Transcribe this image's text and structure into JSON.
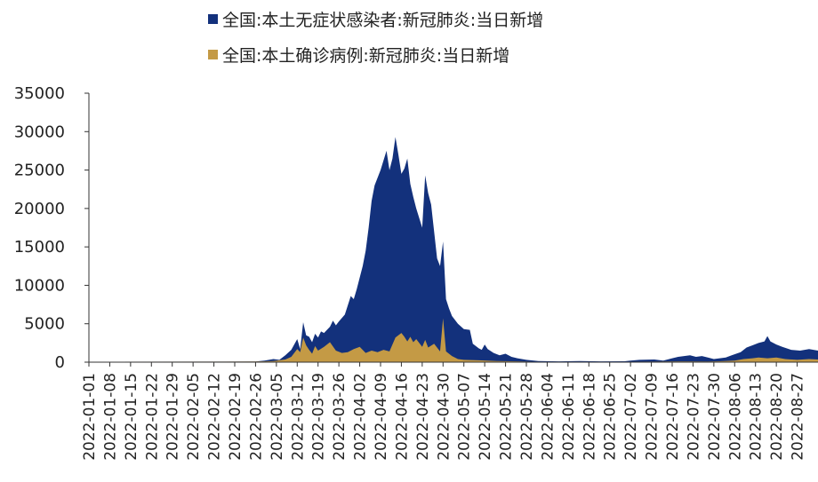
{
  "legend": [
    {
      "label": "全国:本土无症状感染者:新冠肺炎:当日新增",
      "color": "#13317c"
    },
    {
      "label": "全国:本土确诊病例:新冠肺炎:当日新增",
      "color": "#c49a45"
    }
  ],
  "chart_data": {
    "type": "area",
    "stacked": true,
    "ylim": [
      0,
      35000
    ],
    "yticks": [
      0,
      5000,
      10000,
      15000,
      20000,
      25000,
      30000,
      35000
    ],
    "xlim": [
      "2022-01-01",
      "2022-09-03"
    ],
    "xticks": [
      "2022-01-01",
      "2022-01-08",
      "2022-01-15",
      "2022-01-22",
      "2022-01-29",
      "2022-02-05",
      "2022-02-12",
      "2022-02-19",
      "2022-02-26",
      "2022-03-05",
      "2022-03-12",
      "2022-03-19",
      "2022-03-26",
      "2022-04-02",
      "2022-04-09",
      "2022-04-16",
      "2022-04-23",
      "2022-04-30",
      "2022-05-07",
      "2022-05-14",
      "2022-05-21",
      "2022-05-28",
      "2022-06-04",
      "2022-06-11",
      "2022-06-18",
      "2022-06-25",
      "2022-07-02",
      "2022-07-09",
      "2022-07-16",
      "2022-07-23",
      "2022-07-30",
      "2022-08-06",
      "2022-08-13",
      "2022-08-20",
      "2022-08-27"
    ],
    "series": [
      {
        "name": "全国:本土确诊病例:新冠肺炎:当日新增",
        "color": "#c49a45",
        "points": [
          [
            "2022-01-01",
            50
          ],
          [
            "2022-02-26",
            80
          ],
          [
            "2022-03-01",
            100
          ],
          [
            "2022-03-04",
            150
          ],
          [
            "2022-03-06",
            250
          ],
          [
            "2022-03-08",
            350
          ],
          [
            "2022-03-10",
            700
          ],
          [
            "2022-03-11",
            1200
          ],
          [
            "2022-03-12",
            1700
          ],
          [
            "2022-03-13",
            1300
          ],
          [
            "2022-03-14",
            3200
          ],
          [
            "2022-03-15",
            2200
          ],
          [
            "2022-03-16",
            1600
          ],
          [
            "2022-03-17",
            1100
          ],
          [
            "2022-03-18",
            2100
          ],
          [
            "2022-03-19",
            1500
          ],
          [
            "2022-03-21",
            2000
          ],
          [
            "2022-03-23",
            2600
          ],
          [
            "2022-03-25",
            1500
          ],
          [
            "2022-03-27",
            1200
          ],
          [
            "2022-03-29",
            1300
          ],
          [
            "2022-03-31",
            1700
          ],
          [
            "2022-04-02",
            2000
          ],
          [
            "2022-04-04",
            1200
          ],
          [
            "2022-04-06",
            1500
          ],
          [
            "2022-04-08",
            1300
          ],
          [
            "2022-04-10",
            1600
          ],
          [
            "2022-04-12",
            1400
          ],
          [
            "2022-04-14",
            3200
          ],
          [
            "2022-04-16",
            3800
          ],
          [
            "2022-04-17",
            3300
          ],
          [
            "2022-04-18",
            2700
          ],
          [
            "2022-04-19",
            3300
          ],
          [
            "2022-04-20",
            2600
          ],
          [
            "2022-04-21",
            3000
          ],
          [
            "2022-04-23",
            2000
          ],
          [
            "2022-04-24",
            2900
          ],
          [
            "2022-04-25",
            1900
          ],
          [
            "2022-04-27",
            2400
          ],
          [
            "2022-04-29",
            1400
          ],
          [
            "2022-04-30",
            5700
          ],
          [
            "2022-05-01",
            1400
          ],
          [
            "2022-05-03",
            800
          ],
          [
            "2022-05-05",
            400
          ],
          [
            "2022-05-07",
            300
          ],
          [
            "2022-05-12",
            250
          ],
          [
            "2022-05-18",
            150
          ],
          [
            "2022-05-25",
            100
          ],
          [
            "2022-06-01",
            50
          ],
          [
            "2022-06-18",
            40
          ],
          [
            "2022-07-01",
            60
          ],
          [
            "2022-07-10",
            70
          ],
          [
            "2022-07-20",
            100
          ],
          [
            "2022-07-28",
            80
          ],
          [
            "2022-08-01",
            120
          ],
          [
            "2022-08-06",
            200
          ],
          [
            "2022-08-09",
            400
          ],
          [
            "2022-08-12",
            500
          ],
          [
            "2022-08-14",
            600
          ],
          [
            "2022-08-17",
            500
          ],
          [
            "2022-08-20",
            600
          ],
          [
            "2022-08-23",
            400
          ],
          [
            "2022-08-27",
            300
          ],
          [
            "2022-08-31",
            400
          ],
          [
            "2022-09-03",
            350
          ]
        ]
      },
      {
        "name": "全国:本土无症状感染者:新冠肺炎:当日新增",
        "color": "#13317c",
        "points": [
          [
            "2022-01-01",
            50
          ],
          [
            "2022-02-26",
            80
          ],
          [
            "2022-03-01",
            200
          ],
          [
            "2022-03-04",
            400
          ],
          [
            "2022-03-06",
            300
          ],
          [
            "2022-03-08",
            900
          ],
          [
            "2022-03-10",
            1600
          ],
          [
            "2022-03-12",
            3000
          ],
          [
            "2022-03-13",
            1700
          ],
          [
            "2022-03-14",
            5200
          ],
          [
            "2022-03-15",
            3500
          ],
          [
            "2022-03-16",
            3300
          ],
          [
            "2022-03-17",
            2600
          ],
          [
            "2022-03-18",
            3700
          ],
          [
            "2022-03-19",
            3200
          ],
          [
            "2022-03-20",
            4000
          ],
          [
            "2022-03-21",
            3800
          ],
          [
            "2022-03-23",
            4600
          ],
          [
            "2022-03-24",
            5400
          ],
          [
            "2022-03-25",
            4800
          ],
          [
            "2022-03-26",
            5300
          ],
          [
            "2022-03-28",
            6200
          ],
          [
            "2022-03-30",
            8600
          ],
          [
            "2022-03-31",
            8200
          ],
          [
            "2022-04-01",
            9500
          ],
          [
            "2022-04-02",
            11000
          ],
          [
            "2022-04-03",
            12500
          ],
          [
            "2022-04-04",
            14500
          ],
          [
            "2022-04-05",
            17500
          ],
          [
            "2022-04-06",
            21000
          ],
          [
            "2022-04-07",
            23000
          ],
          [
            "2022-04-09",
            25000
          ],
          [
            "2022-04-11",
            27500
          ],
          [
            "2022-04-12",
            25000
          ],
          [
            "2022-04-13",
            26500
          ],
          [
            "2022-04-14",
            29300
          ],
          [
            "2022-04-15",
            27000
          ],
          [
            "2022-04-16",
            24500
          ],
          [
            "2022-04-17",
            25200
          ],
          [
            "2022-04-18",
            26500
          ],
          [
            "2022-04-19",
            23200
          ],
          [
            "2022-04-20",
            21500
          ],
          [
            "2022-04-21",
            20000
          ],
          [
            "2022-04-23",
            17500
          ],
          [
            "2022-04-24",
            24300
          ],
          [
            "2022-04-25",
            22000
          ],
          [
            "2022-04-26",
            20500
          ],
          [
            "2022-04-28",
            13500
          ],
          [
            "2022-04-29",
            12500
          ],
          [
            "2022-04-30",
            15700
          ],
          [
            "2022-05-01",
            8200
          ],
          [
            "2022-05-02",
            7000
          ],
          [
            "2022-05-03",
            6000
          ],
          [
            "2022-05-05",
            5000
          ],
          [
            "2022-05-07",
            4300
          ],
          [
            "2022-05-09",
            4200
          ],
          [
            "2022-05-10",
            2400
          ],
          [
            "2022-05-12",
            1800
          ],
          [
            "2022-05-13",
            1600
          ],
          [
            "2022-05-14",
            2300
          ],
          [
            "2022-05-15",
            1700
          ],
          [
            "2022-05-17",
            1200
          ],
          [
            "2022-05-19",
            900
          ],
          [
            "2022-05-21",
            1100
          ],
          [
            "2022-05-23",
            700
          ],
          [
            "2022-05-25",
            500
          ],
          [
            "2022-05-28",
            300
          ],
          [
            "2022-06-01",
            150
          ],
          [
            "2022-06-08",
            100
          ],
          [
            "2022-06-15",
            150
          ],
          [
            "2022-06-22",
            100
          ],
          [
            "2022-06-30",
            120
          ],
          [
            "2022-07-02",
            200
          ],
          [
            "2022-07-05",
            300
          ],
          [
            "2022-07-10",
            350
          ],
          [
            "2022-07-13",
            200
          ],
          [
            "2022-07-16",
            500
          ],
          [
            "2022-07-18",
            700
          ],
          [
            "2022-07-20",
            800
          ],
          [
            "2022-07-22",
            900
          ],
          [
            "2022-07-24",
            700
          ],
          [
            "2022-07-26",
            800
          ],
          [
            "2022-07-28",
            600
          ],
          [
            "2022-07-30",
            400
          ],
          [
            "2022-08-01",
            500
          ],
          [
            "2022-08-03",
            600
          ],
          [
            "2022-08-05",
            900
          ],
          [
            "2022-08-08",
            1300
          ],
          [
            "2022-08-10",
            1900
          ],
          [
            "2022-08-12",
            2200
          ],
          [
            "2022-08-14",
            2500
          ],
          [
            "2022-08-16",
            2700
          ],
          [
            "2022-08-17",
            3400
          ],
          [
            "2022-08-18",
            2700
          ],
          [
            "2022-08-20",
            2300
          ],
          [
            "2022-08-22",
            2000
          ],
          [
            "2022-08-25",
            1600
          ],
          [
            "2022-08-28",
            1500
          ],
          [
            "2022-08-31",
            1700
          ],
          [
            "2022-09-03",
            1500
          ]
        ]
      }
    ]
  }
}
